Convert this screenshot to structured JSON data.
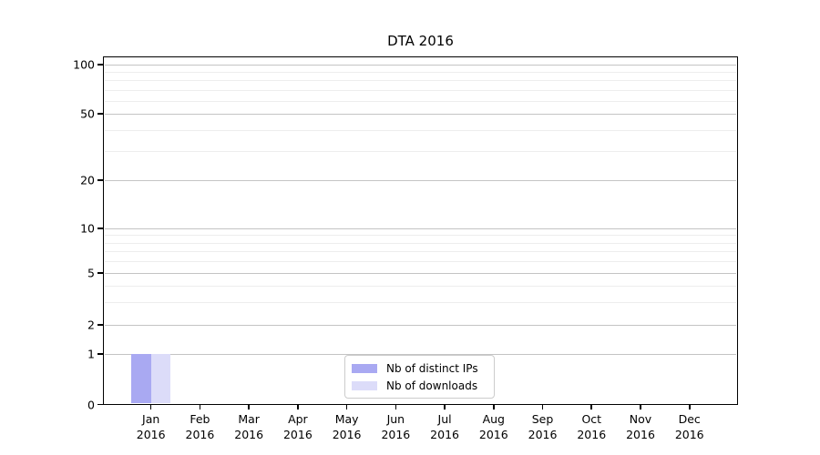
{
  "chart_data": {
    "type": "bar",
    "title": "DTA 2016",
    "categories": [
      "Jan 2016",
      "Feb 2016",
      "Mar 2016",
      "Apr 2016",
      "May 2016",
      "Jun 2016",
      "Jul 2016",
      "Aug 2016",
      "Sep 2016",
      "Oct 2016",
      "Nov 2016",
      "Dec 2016"
    ],
    "months": [
      "Jan",
      "Feb",
      "Mar",
      "Apr",
      "May",
      "Jun",
      "Jul",
      "Aug",
      "Sep",
      "Oct",
      "Nov",
      "Dec"
    ],
    "year": "2016",
    "series": [
      {
        "name": "Nb of distinct IPs",
        "color": "#a9a9f2",
        "values": [
          1,
          0,
          0,
          0,
          0,
          0,
          0,
          0,
          0,
          0,
          0,
          0
        ]
      },
      {
        "name": "Nb of downloads",
        "color": "#dcdcf9",
        "values": [
          1,
          0,
          0,
          0,
          0,
          0,
          0,
          0,
          0,
          0,
          0,
          0
        ]
      }
    ],
    "y_axis": {
      "scale": "symlog-like (linear 0-1, logarithmic above 1)",
      "ticks": [
        0,
        1,
        2,
        5,
        10,
        20,
        50,
        100
      ],
      "minor_ticks": [
        3,
        4,
        6,
        7,
        8,
        9,
        30,
        40,
        60,
        70,
        80,
        90
      ],
      "range": [
        0,
        130
      ]
    },
    "xlabel": "",
    "ylabel": "",
    "grid": "horizontal major and minor gridlines",
    "legend": {
      "position": "inside bottom-center",
      "entries": [
        "Nb of distinct IPs",
        "Nb of downloads"
      ]
    }
  },
  "colors": {
    "background": "#ffffff",
    "bar_distinct_ips": "#a9a9f2",
    "bar_downloads": "#dcdcf9",
    "grid_major": "#c4c4c4",
    "grid_minor": "#ededed",
    "axis": "#000000",
    "legend_border": "#cccccc",
    "text": "#000000"
  }
}
